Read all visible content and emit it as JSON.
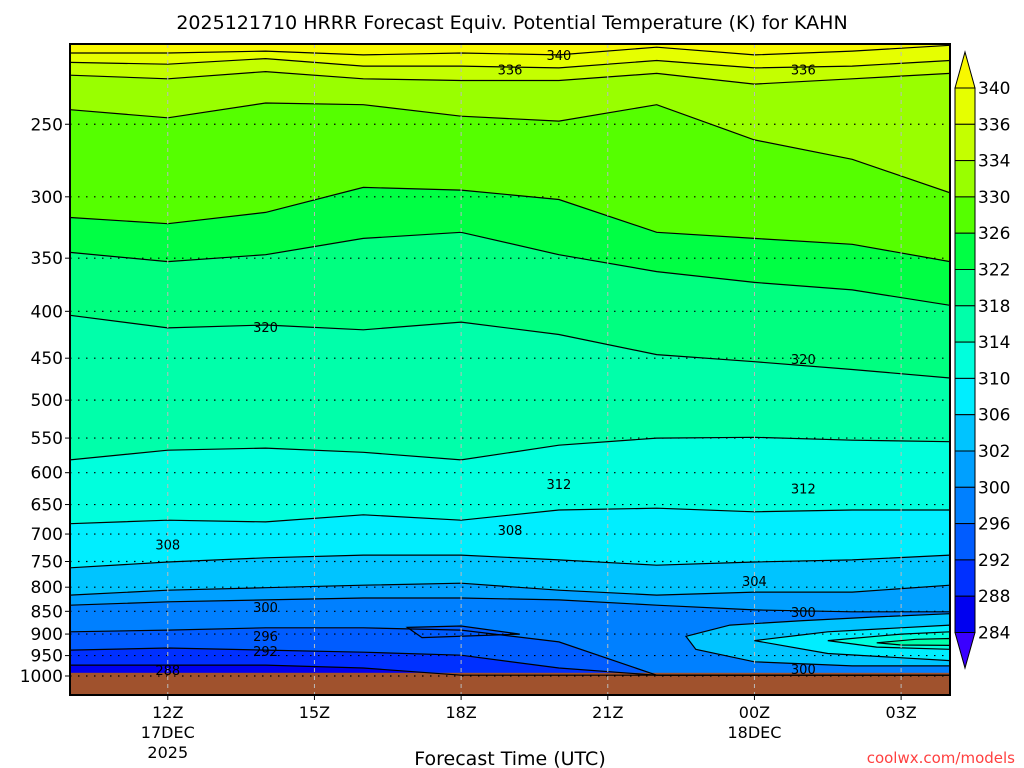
{
  "title": "2025121710 HRRR Forecast Equiv. Potential Temperature (K) for KAHN",
  "credit": "coolwx.com/models",
  "chart_data": {
    "type": "contour",
    "title": "2025121710 HRRR Forecast Equiv. Potential Temperature (K) for KAHN",
    "xlabel": "Forecast Time (UTC)",
    "ylabel": "",
    "x_units": "hours since 2025-12-17 10Z",
    "xlim": [
      0,
      18
    ],
    "ylim_hPa": [
      1050,
      204
    ],
    "y_scale": "log-pressure",
    "grid": true,
    "yticks": [
      250,
      300,
      350,
      400,
      450,
      500,
      550,
      600,
      650,
      700,
      750,
      800,
      850,
      900,
      950,
      1000
    ],
    "xticks": [
      {
        "hour": 2,
        "label": [
          "12Z",
          "17DEC",
          "2025"
        ]
      },
      {
        "hour": 5,
        "label": [
          "15Z"
        ]
      },
      {
        "hour": 8,
        "label": [
          "18Z"
        ]
      },
      {
        "hour": 11,
        "label": [
          "21Z"
        ]
      },
      {
        "hour": 14,
        "label": [
          "00Z",
          "18DEC"
        ]
      },
      {
        "hour": 17,
        "label": [
          "03Z"
        ]
      }
    ],
    "colorbar": {
      "levels": [
        340,
        336,
        334,
        330,
        326,
        322,
        318,
        314,
        310,
        306,
        302,
        300,
        296,
        292,
        288,
        284
      ],
      "colors": [
        "#f8f800",
        "#e6ff00",
        "#c4ff00",
        "#99ff00",
        "#55ff00",
        "#00ff44",
        "#00ff80",
        "#00ffaa",
        "#00ffdd",
        "#00eeff",
        "#00c4ff",
        "#00a0ff",
        "#0080ff",
        "#005cff",
        "#0030ff",
        "#0000f0",
        "#3a00ff"
      ]
    },
    "contour_hours": [
      0,
      2,
      4,
      6,
      8,
      10,
      12,
      14,
      16,
      18
    ],
    "contours": [
      {
        "level": 340,
        "p": [
          209,
          209,
          208,
          210,
          209,
          210,
          206,
          210,
          208,
          205
        ]
      },
      {
        "level": 336,
        "p": [
          214,
          215,
          212,
          216,
          216,
          217,
          213,
          217,
          216,
          213
        ]
      },
      {
        "level": 334,
        "p": [
          221,
          223,
          219,
          223,
          224,
          224,
          220,
          226,
          223,
          220
        ]
      },
      {
        "level": 330,
        "p": [
          241,
          246,
          237,
          238,
          245,
          248,
          238,
          260,
          273,
          297
        ]
      },
      {
        "level": 326,
        "p": [
          316,
          321,
          312,
          293,
          295,
          302,
          328,
          333,
          338,
          353
        ]
      },
      {
        "level": 322,
        "p": [
          345,
          353,
          347,
          333,
          328,
          347,
          362,
          372,
          379,
          394
        ]
      },
      {
        "level": 318,
        "p": [
          404,
          417,
          414,
          419,
          411,
          424,
          446,
          454,
          463,
          473
        ]
      },
      {
        "level": 314,
        "p": [
          581,
          567,
          564,
          570,
          581,
          560,
          550,
          549,
          553,
          555
        ]
      },
      {
        "level": 310,
        "p": [
          682,
          676,
          679,
          667,
          676,
          659,
          656,
          662,
          659,
          659
        ]
      },
      {
        "level": 306,
        "p": [
          762,
          751,
          743,
          738,
          738,
          747,
          757,
          751,
          747,
          738
        ]
      },
      {
        "level": 302,
        "p": [
          816,
          806,
          801,
          796,
          792,
          806,
          816,
          810,
          810,
          796
        ]
      },
      {
        "level": 300,
        "p": [
          837,
          830,
          826,
          822,
          822,
          826,
          837,
          847,
          851,
          851
        ]
      },
      {
        "level": 296,
        "p": [
          895,
          891,
          886,
          886,
          891,
          918,
          998,
          998,
          998,
          998
        ]
      },
      {
        "level": 292,
        "p": [
          937,
          932,
          937,
          942,
          949,
          980,
          998,
          998,
          998,
          998
        ]
      },
      {
        "level": 288,
        "p": [
          973,
          973,
          973,
          980,
          998,
          998,
          998,
          998,
          998,
          998
        ]
      }
    ],
    "closed_contours": [
      {
        "level": 296,
        "points": [
          [
            6.9,
            885
          ],
          [
            8,
            882
          ],
          [
            9.2,
            900
          ],
          [
            7.2,
            908
          ]
        ]
      },
      {
        "level": 302,
        "points": [
          [
            12.6,
            905
          ],
          [
            13.5,
            880
          ],
          [
            15,
            870
          ],
          [
            16.5,
            862
          ],
          [
            18,
            855
          ],
          [
            18,
            975
          ],
          [
            16,
            975
          ],
          [
            14,
            965
          ],
          [
            12.8,
            935
          ]
        ]
      },
      {
        "level": 306,
        "points": [
          [
            14,
            915
          ],
          [
            15.5,
            895
          ],
          [
            18,
            880
          ],
          [
            18,
            962
          ],
          [
            15.5,
            945
          ]
        ]
      },
      {
        "level": 310,
        "points": [
          [
            15.5,
            915
          ],
          [
            17,
            900
          ],
          [
            18,
            895
          ],
          [
            18,
            935
          ],
          [
            16.5,
            930
          ]
        ]
      },
      {
        "level": 314,
        "points": [
          [
            16.5,
            920
          ],
          [
            17.3,
            912
          ],
          [
            18,
            910
          ],
          [
            18,
            926
          ],
          [
            17,
            925
          ]
        ]
      }
    ],
    "labels": [
      {
        "text": "340",
        "hour": 10,
        "p": 210
      },
      {
        "text": "336",
        "hour": 9,
        "p": 218
      },
      {
        "text": "336",
        "hour": 15,
        "p": 218
      },
      {
        "text": "320",
        "hour": 4,
        "p": 416
      },
      {
        "text": "320",
        "hour": 15,
        "p": 451
      },
      {
        "text": "312",
        "hour": 10,
        "p": 617
      },
      {
        "text": "312",
        "hour": 15,
        "p": 624
      },
      {
        "text": "308",
        "hour": 2,
        "p": 719
      },
      {
        "text": "308",
        "hour": 9,
        "p": 693
      },
      {
        "text": "304",
        "hour": 14,
        "p": 788
      },
      {
        "text": "300",
        "hour": 4,
        "p": 841
      },
      {
        "text": "300",
        "hour": 15,
        "p": 851
      },
      {
        "text": "300",
        "hour": 15,
        "p": 983
      },
      {
        "text": "296",
        "hour": 4,
        "p": 904
      },
      {
        "text": "292",
        "hour": 4,
        "p": 939
      },
      {
        "text": "288",
        "hour": 2,
        "p": 985
      }
    ],
    "surface_pressure": 992,
    "ground_color": "#a0522d"
  }
}
